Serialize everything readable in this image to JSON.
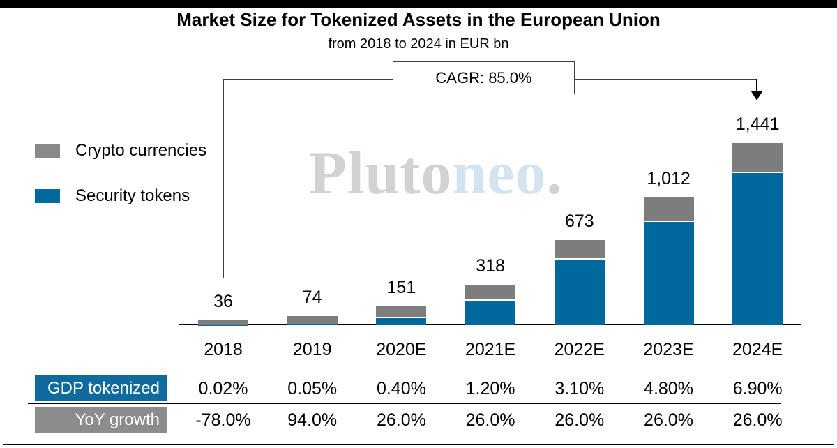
{
  "page": {
    "title": "Market Size for Tokenized Assets in the European Union",
    "subtitle": "from 2018 to 2024 in EUR bn"
  },
  "annotation": {
    "cagr_label": "CAGR: 85.0%"
  },
  "legend": {
    "items": [
      {
        "label": "Crypto currencies",
        "color": "#7d7d7d"
      },
      {
        "label": "Security tokens",
        "color": "#01689e"
      }
    ]
  },
  "watermark": {
    "part1": "Pluto",
    "part2": "neo",
    "part3": "."
  },
  "colors": {
    "security_blue": "#01689e",
    "crypto_gray": "#7d7d7d",
    "legend_gray": "#898989",
    "table_label_blue": "#0f6a9e",
    "table_label_gray": "#8c8c8c",
    "watermark_gray": "#d2d2d2",
    "watermark_blue": "#d4e3f1"
  },
  "chart_data": {
    "type": "bar",
    "stacked": true,
    "title": "Market Size for Tokenized Assets in the European Union",
    "subtitle": "from 2018 to 2024 in EUR bn",
    "unit": "EUR bn",
    "categories": [
      "2018",
      "2019",
      "2020E",
      "2021E",
      "2022E",
      "2023E",
      "2024E"
    ],
    "totals": [
      36,
      74,
      151,
      318,
      673,
      1012,
      1441
    ],
    "total_labels": [
      "36",
      "74",
      "151",
      "318",
      "673",
      "1,012",
      "1,441"
    ],
    "series": [
      {
        "name": "Security tokens",
        "color": "#01689e",
        "values": [
          1,
          4,
          69,
          204,
          530,
          828,
          1215
        ]
      },
      {
        "name": "Crypto currencies",
        "color": "#7d7d7d",
        "values": [
          35,
          70,
          82,
          114,
          143,
          184,
          226
        ]
      }
    ],
    "annotation": "CAGR: 85.0%",
    "ylim": [
      0,
      1500
    ],
    "y_axis_shown": false,
    "grid": false,
    "legend_position": "upper-left",
    "table": {
      "rows": [
        {
          "label": "GDP tokenized",
          "values": [
            "0.02%",
            "0.05%",
            "0.40%",
            "1.20%",
            "3.10%",
            "4.80%",
            "6.90%"
          ]
        },
        {
          "label": "YoY growth",
          "values": [
            "-78.0%",
            "94.0%",
            "26.0%",
            "26.0%",
            "26.0%",
            "26.0%",
            "26.0%"
          ]
        }
      ]
    }
  }
}
